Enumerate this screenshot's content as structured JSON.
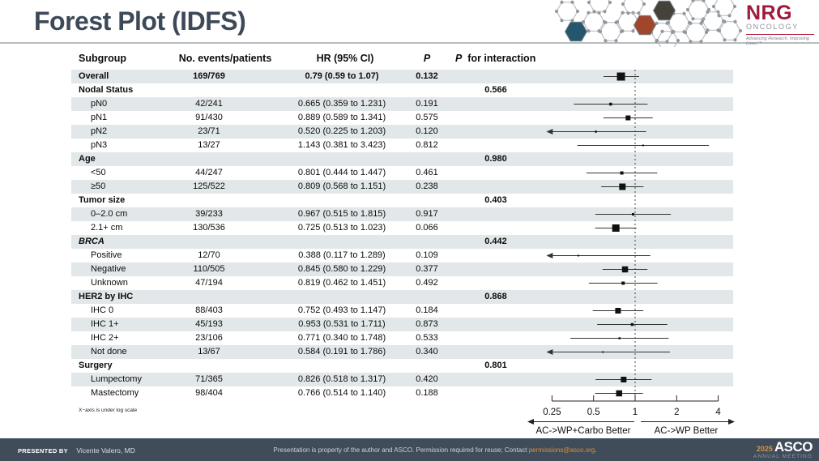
{
  "title": "Forest Plot (IDFS)",
  "colors": {
    "title_text": "#3d4957",
    "row_band": "#e2e7ea",
    "footer_bg": "#404c5a",
    "nrg_red": "#9e1b3c",
    "link_orange": "#dc8f3f",
    "asco_orange": "#d9933c",
    "marker_black": "#111111"
  },
  "logos": {
    "nrg": {
      "name": "NRG",
      "sub": "ONCOLOGY",
      "tagline": "Advancing Research. Improving Lives.™"
    },
    "asco": {
      "year": "2025",
      "name": "ASCO",
      "sub": "ANNUAL MEETING"
    }
  },
  "table_header": {
    "subgroup": "Subgroup",
    "events": "No. events/patients",
    "hr": "HR (95% CI)",
    "p": "P",
    "p_interaction_p": "P",
    "p_interaction_rest": "for interaction"
  },
  "chart_data": {
    "type": "forest",
    "x_axis": {
      "scale": "log",
      "ticks": [
        0.25,
        0.5,
        1,
        2,
        4
      ],
      "tick_labels": [
        "0.25",
        "0.5",
        "1",
        "2",
        "4"
      ],
      "range": [
        0.25,
        4
      ],
      "reference_line": 1,
      "note": "X−axis is under log scale"
    },
    "direction_labels": {
      "left": "AC->WP+Carbo Better",
      "right": "AC->WP Better"
    },
    "rows": [
      {
        "label": "Overall",
        "level": 0,
        "header": true,
        "boldvals": true,
        "events": "169/769",
        "hr_text": "0.79 (0.59 to 1.07)",
        "p": "0.132",
        "hr": 0.79,
        "lo": 0.59,
        "hi": 1.07,
        "size": 10
      },
      {
        "label": "Nodal Status",
        "level": 0,
        "header": true,
        "p_interaction": "0.566"
      },
      {
        "label": "pN0",
        "level": 1,
        "events": "42/241",
        "hr_text": "0.665 (0.359 to 1.231)",
        "p": "0.191",
        "hr": 0.665,
        "lo": 0.359,
        "hi": 1.231,
        "size": 3.5
      },
      {
        "label": "pN1",
        "level": 1,
        "events": "91/430",
        "hr_text": "0.889 (0.589 to 1.341)",
        "p": "0.575",
        "hr": 0.889,
        "lo": 0.589,
        "hi": 1.341,
        "size": 6
      },
      {
        "label": "pN2",
        "level": 1,
        "events": "23/71",
        "hr_text": "0.520 (0.225 to 1.203)",
        "p": "0.120",
        "hr": 0.52,
        "lo": 0.225,
        "hi": 1.203,
        "size": 2.5
      },
      {
        "label": "pN3",
        "level": 1,
        "events": "13/27",
        "hr_text": "1.143 (0.381 to 3.423)",
        "p": "0.812",
        "hr": 1.143,
        "lo": 0.381,
        "hi": 3.423,
        "size": 2
      },
      {
        "label": "Age",
        "level": 0,
        "header": true,
        "p_interaction": "0.980"
      },
      {
        "label": "<50",
        "level": 1,
        "events": "44/247",
        "hr_text": "0.801 (0.444 to 1.447)",
        "p": "0.461",
        "hr": 0.801,
        "lo": 0.444,
        "hi": 1.447,
        "size": 4
      },
      {
        "label": "≥50",
        "level": 1,
        "events": "125/522",
        "hr_text": "0.809 (0.568 to 1.151)",
        "p": "0.238",
        "hr": 0.809,
        "lo": 0.568,
        "hi": 1.151,
        "size": 8
      },
      {
        "label": "Tumor size",
        "level": 0,
        "header": true,
        "p_interaction": "0.403"
      },
      {
        "label": "0–2.0 cm",
        "level": 1,
        "events": "39/233",
        "hr_text": "0.967 (0.515 to 1.815)",
        "p": "0.917",
        "hr": 0.967,
        "lo": 0.515,
        "hi": 1.815,
        "size": 3
      },
      {
        "label": "2.1+ cm",
        "level": 1,
        "events": "130/536",
        "hr_text": "0.725 (0.513 to 1.023)",
        "p": "0.066",
        "hr": 0.725,
        "lo": 0.513,
        "hi": 1.023,
        "size": 9
      },
      {
        "label": "BRCA",
        "level": 0,
        "header": true,
        "italic": true,
        "p_interaction": "0.442"
      },
      {
        "label": "Positive",
        "level": 1,
        "events": "12/70",
        "hr_text": "0.388 (0.117 to 1.289)",
        "p": "0.109",
        "hr": 0.388,
        "lo": 0.117,
        "hi": 1.289,
        "size": 2
      },
      {
        "label": "Negative",
        "level": 1,
        "events": "110/505",
        "hr_text": "0.845 (0.580 to 1.229)",
        "p": "0.377",
        "hr": 0.845,
        "lo": 0.58,
        "hi": 1.229,
        "size": 7.5
      },
      {
        "label": "Unknown",
        "level": 1,
        "events": "47/194",
        "hr_text": "0.819 (0.462 to 1.451)",
        "p": "0.492",
        "hr": 0.819,
        "lo": 0.462,
        "hi": 1.451,
        "size": 4
      },
      {
        "label": "HER2 by IHC",
        "level": 0,
        "header": true,
        "p_interaction": "0.868"
      },
      {
        "label": "IHC 0",
        "level": 1,
        "events": "88/403",
        "hr_text": "0.752 (0.493 to 1.147)",
        "p": "0.184",
        "hr": 0.752,
        "lo": 0.493,
        "hi": 1.147,
        "size": 7
      },
      {
        "label": "IHC 1+",
        "level": 1,
        "events": "45/193",
        "hr_text": "0.953 (0.531 to 1.711)",
        "p": "0.873",
        "hr": 0.953,
        "lo": 0.531,
        "hi": 1.711,
        "size": 3.5
      },
      {
        "label": "IHC 2+",
        "level": 1,
        "events": "23/106",
        "hr_text": "0.771 (0.340 to 1.748)",
        "p": "0.533",
        "hr": 0.771,
        "lo": 0.34,
        "hi": 1.748,
        "size": 2.5
      },
      {
        "label": "Not done",
        "level": 1,
        "events": "13/67",
        "hr_text": "0.584 (0.191 to 1.786)",
        "p": "0.340",
        "hr": 0.584,
        "lo": 0.191,
        "hi": 1.786,
        "size": 2
      },
      {
        "label": "Surgery",
        "level": 0,
        "header": true,
        "p_interaction": "0.801"
      },
      {
        "label": "Lumpectomy",
        "level": 1,
        "events": "71/365",
        "hr_text": "0.826 (0.518 to 1.317)",
        "p": "0.420",
        "hr": 0.826,
        "lo": 0.518,
        "hi": 1.317,
        "size": 7
      },
      {
        "label": "Mastectomy",
        "level": 1,
        "events": "98/404",
        "hr_text": "0.766 (0.514 to 1.140)",
        "p": "0.188",
        "hr": 0.766,
        "lo": 0.514,
        "hi": 1.14,
        "size": 7.5
      }
    ]
  },
  "footer": {
    "presented_by_label": "PRESENTED BY",
    "presenter": "Vicente Valero, MD",
    "notice_prefix": "Presentation is property of the author and ASCO. Permission required for reuse; Contact ",
    "notice_link": "permissions@asco.org",
    "notice_suffix": "."
  }
}
